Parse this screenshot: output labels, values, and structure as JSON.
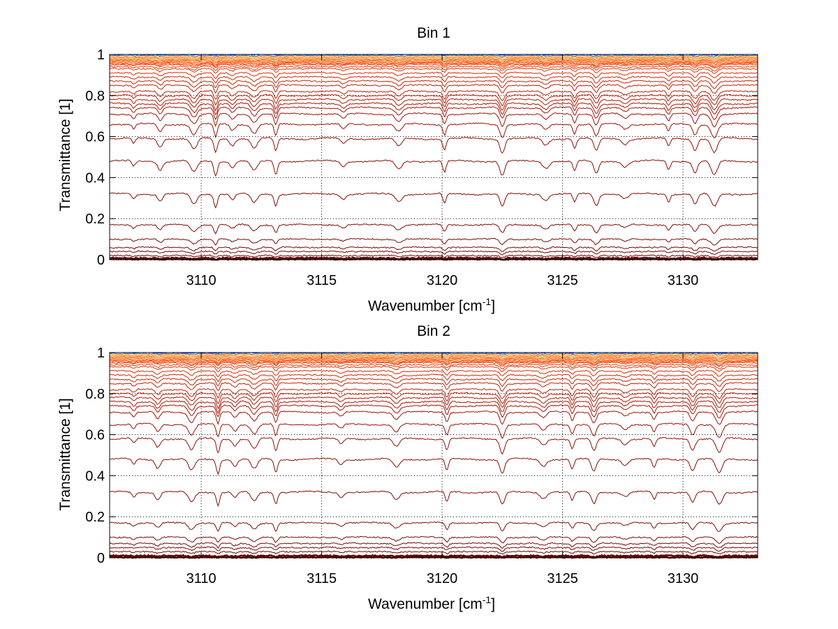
{
  "chart_data": [
    {
      "type": "line",
      "title": "Bin 1",
      "xlabel": "Wavenumber [cm",
      "xlabel_sup": "-1",
      "xlabel_suffix": "]",
      "ylabel": "Transmittance [1]",
      "xlim": [
        3106.2,
        3133.1
      ],
      "ylim": [
        0,
        1
      ],
      "xticks": [
        3110,
        3115,
        3120,
        3125,
        3130
      ],
      "xtick_labels": [
        "3110",
        "3115",
        "3120",
        "3125",
        "3130"
      ],
      "yticks": [
        0,
        0.2,
        0.4,
        0.6,
        0.8,
        1
      ],
      "ytick_labels": [
        "0",
        "0.2",
        "0.4",
        "0.6",
        "0.8",
        "1"
      ],
      "grid": "dotted",
      "series_description": "family of transmittance spectra, blue (near 1) through orange to dark red (near 0)",
      "baselines": [
        1.0,
        0.995,
        0.99,
        0.985,
        0.98,
        0.975,
        0.97,
        0.965,
        0.96,
        0.955,
        0.95,
        0.94,
        0.93,
        0.91,
        0.89,
        0.87,
        0.85,
        0.82,
        0.8,
        0.78,
        0.76,
        0.74,
        0.71,
        0.66,
        0.59,
        0.48,
        0.32,
        0.17,
        0.1,
        0.06,
        0.04,
        0.02,
        0.008,
        0.003
      ],
      "colors": [
        "#1f3fbf",
        "#2f5fd8",
        "#ff9a1a",
        "#ff8c18",
        "#ff7e16",
        "#ff7014",
        "#ff6212",
        "#ff5810",
        "#fa500e",
        "#f4480d",
        "#ee420c",
        "#e63c0b",
        "#de360a",
        "#d63009",
        "#ce2a08",
        "#c82607",
        "#c22206",
        "#bc1f06",
        "#b61c05",
        "#b01905",
        "#aa1604",
        "#a41404",
        "#9e1204",
        "#981003",
        "#920e03",
        "#8c0c03",
        "#860b02",
        "#800a02",
        "#7a0902",
        "#740802",
        "#6e0701",
        "#680601",
        "#620501",
        "#5c0401"
      ],
      "absorption_lines": [
        3107.2,
        3108.3,
        3109.7,
        3110.6,
        3111.3,
        3112.2,
        3113.1,
        3115.9,
        3118.2,
        3120.1,
        3122.5,
        3124.3,
        3125.5,
        3126.4,
        3127.6,
        3129.4,
        3130.5,
        3131.3
      ]
    },
    {
      "type": "line",
      "title": "Bin 2",
      "xlabel": "Wavenumber [cm",
      "xlabel_sup": "-1",
      "xlabel_suffix": "]",
      "ylabel": "Transmittance [1]",
      "xlim": [
        3106.2,
        3133.1
      ],
      "ylim": [
        0,
        1
      ],
      "xticks": [
        3110,
        3115,
        3120,
        3125,
        3130
      ],
      "xtick_labels": [
        "3110",
        "3115",
        "3120",
        "3125",
        "3130"
      ],
      "yticks": [
        0,
        0.2,
        0.4,
        0.6,
        0.8,
        1
      ],
      "ytick_labels": [
        "0",
        "0.2",
        "0.4",
        "0.6",
        "0.8",
        "1"
      ],
      "grid": "dotted",
      "series_description": "family of transmittance spectra, blue (near 1) through orange to dark red (near 0)",
      "baselines": [
        1.0,
        0.995,
        0.99,
        0.985,
        0.98,
        0.975,
        0.97,
        0.965,
        0.96,
        0.955,
        0.95,
        0.94,
        0.93,
        0.91,
        0.89,
        0.87,
        0.85,
        0.82,
        0.8,
        0.78,
        0.76,
        0.74,
        0.71,
        0.65,
        0.58,
        0.48,
        0.32,
        0.17,
        0.1,
        0.07,
        0.05,
        0.03,
        0.01,
        0.003
      ],
      "colors": [
        "#1f3fbf",
        "#2f5fd8",
        "#ff9a1a",
        "#ff8c18",
        "#ff7e16",
        "#ff7014",
        "#ff6212",
        "#ff5810",
        "#fa500e",
        "#f4480d",
        "#ee420c",
        "#e63c0b",
        "#de360a",
        "#d63009",
        "#ce2a08",
        "#c82607",
        "#c22206",
        "#bc1f06",
        "#b61c05",
        "#b01905",
        "#aa1604",
        "#a41404",
        "#9e1204",
        "#981003",
        "#920e03",
        "#8c0c03",
        "#860b02",
        "#800a02",
        "#7a0902",
        "#740802",
        "#6e0701",
        "#680601",
        "#620501",
        "#5c0401"
      ],
      "absorption_lines": [
        3107.2,
        3108.2,
        3109.6,
        3110.7,
        3111.4,
        3112.2,
        3113.1,
        3115.8,
        3118.1,
        3120.2,
        3122.5,
        3124.2,
        3125.4,
        3126.3,
        3127.6,
        3128.8,
        3130.4,
        3131.5
      ]
    }
  ]
}
